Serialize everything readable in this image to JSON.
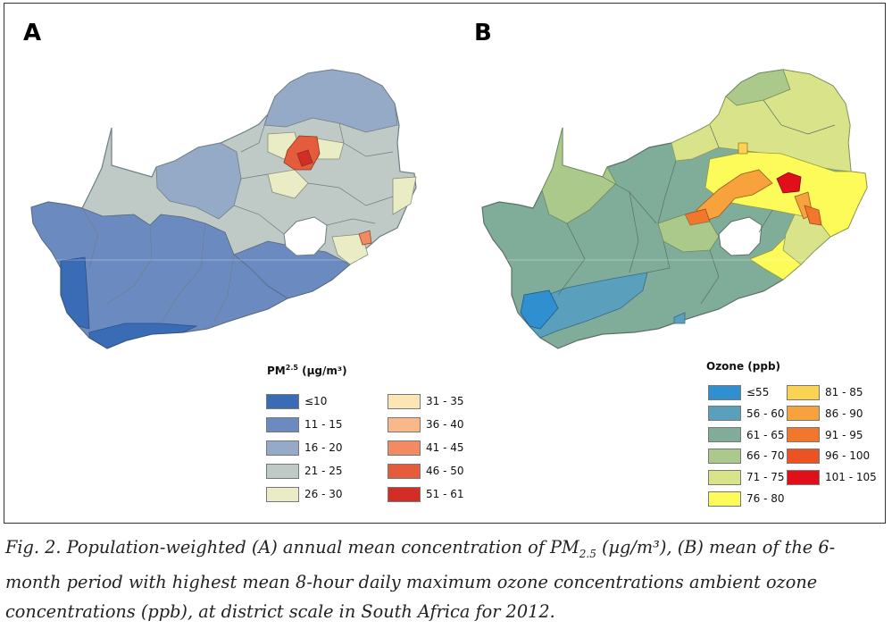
{
  "panels": {
    "a": {
      "letter": "A"
    },
    "b": {
      "letter": "B"
    }
  },
  "legend_a": {
    "title_main": "PM",
    "title_sub": "2.5",
    "title_unit": " (µg/m³)",
    "items": [
      {
        "label": "≤10",
        "color": "#3a6cb6"
      },
      {
        "label": "11 - 15",
        "color": "#6b8bc0"
      },
      {
        "label": "16 - 20",
        "color": "#95aac6"
      },
      {
        "label": "21 - 25",
        "color": "#bfcac6"
      },
      {
        "label": "26 - 30",
        "color": "#e9ecc4"
      },
      {
        "label": "31 - 35",
        "color": "#fbe6b4"
      },
      {
        "label": "36 - 40",
        "color": "#f8b88a"
      },
      {
        "label": "41 - 45",
        "color": "#f28a62"
      },
      {
        "label": "46 - 50",
        "color": "#e45c3c"
      },
      {
        "label": "51 - 61",
        "color": "#d32e25"
      }
    ]
  },
  "legend_b": {
    "title": "Ozone (ppb)",
    "items": [
      {
        "label": "≤55",
        "color": "#2f8fcf"
      },
      {
        "label": "56 - 60",
        "color": "#5a9fbc"
      },
      {
        "label": "61 - 65",
        "color": "#7fad9a"
      },
      {
        "label": "66 - 70",
        "color": "#aac98a"
      },
      {
        "label": "71 - 75",
        "color": "#d9e48a"
      },
      {
        "label": "76 - 80",
        "color": "#fdfb5a"
      },
      {
        "label": "81 - 85",
        "color": "#fbd251"
      },
      {
        "label": "86 - 90",
        "color": "#f7a23c"
      },
      {
        "label": "91 - 95",
        "color": "#f2772c"
      },
      {
        "label": "96 - 100",
        "color": "#ec5222"
      },
      {
        "label": "101 - 105",
        "color": "#e00f1a"
      }
    ]
  },
  "caption": {
    "part1": "Fig. 2. Population-weighted (A) annual mean concentration of PM",
    "sub": "2.5",
    "part2": " (µg/m³), (B) mean of the 6-month period with highest mean 8-hour daily maximum ozone concentrations ambient ozone concentrations (ppb), at district scale in South Africa for 2012."
  }
}
